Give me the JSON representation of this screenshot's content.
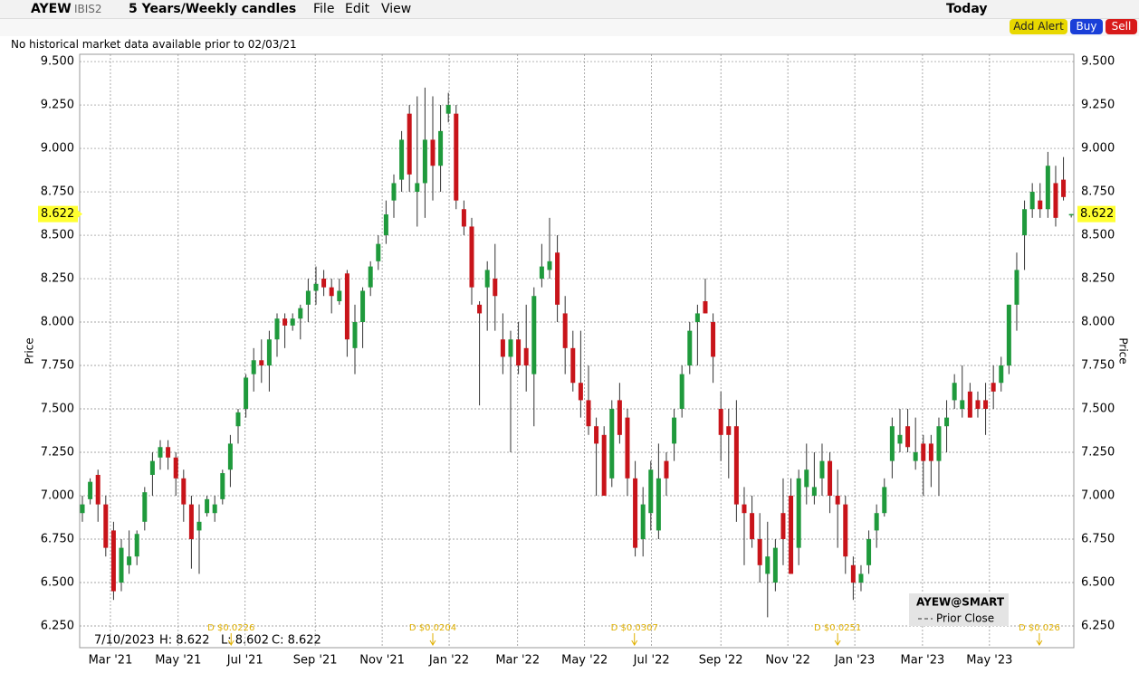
{
  "toolbar": {
    "symbol": "AYEW",
    "exchange": "IBIS2",
    "period": "5 Years/Weekly candles",
    "menus": [
      "File",
      "Edit",
      "View"
    ],
    "range": "Today",
    "buttons": [
      "Add Alert",
      "Buy",
      "Sell"
    ]
  },
  "notice": "No historical market data available prior to 02/03/21",
  "info": {
    "date": "7/10/2023",
    "items": [
      "H: 8.622",
      "L: 8.602",
      "C: 8.622"
    ]
  },
  "legend": {
    "title": "AYEW@SMART",
    "items": [
      "Prior Close"
    ]
  },
  "chart_data": {
    "type": "candlestick",
    "y_label": "Price",
    "up_color": "#1f9a3c",
    "down_color": "#c8141a",
    "grid": true,
    "last_price": 8.622,
    "ylim": [
      6.125,
      9.542
    ],
    "yticks": [
      {
        "value": 6.25,
        "label": "6.250"
      },
      {
        "value": 6.5,
        "label": "6.500"
      },
      {
        "value": 6.75,
        "label": "6.750"
      },
      {
        "value": 7,
        "label": "7.000"
      },
      {
        "value": 7.25,
        "label": "7.250"
      },
      {
        "value": 7.5,
        "label": "7.500"
      },
      {
        "value": 7.75,
        "label": "7.750"
      },
      {
        "value": 8,
        "label": "8.000"
      },
      {
        "value": 8.25,
        "label": "8.250"
      },
      {
        "value": 8.5,
        "label": "8.500"
      },
      {
        "value": 8.75,
        "label": "8.750"
      },
      {
        "value": 9,
        "label": "9.000"
      },
      {
        "value": 9.25,
        "label": "9.250"
      },
      {
        "value": 9.5,
        "label": "9.500"
      }
    ],
    "xlim": [
      -0.35,
      127.33
    ],
    "xticks": [
      {
        "value": 3.6,
        "label": "Mar '21"
      },
      {
        "value": 12.3,
        "label": "May '21"
      },
      {
        "value": 20.9,
        "label": "Jul '21"
      },
      {
        "value": 29.9,
        "label": "Sep '21"
      },
      {
        "value": 38.5,
        "label": "Nov '21"
      },
      {
        "value": 47.1,
        "label": "Jan '22"
      },
      {
        "value": 55.9,
        "label": "Mar '22"
      },
      {
        "value": 64.5,
        "label": "May '22"
      },
      {
        "value": 73.1,
        "label": "Jul '22"
      },
      {
        "value": 82,
        "label": "Sep '22"
      },
      {
        "value": 90.6,
        "label": "Nov '22"
      },
      {
        "value": 99.2,
        "label": "Jan '23"
      },
      {
        "value": 107.9,
        "label": "Mar '23"
      },
      {
        "value": 116.5,
        "label": "May '23"
      }
    ],
    "annotations": [
      {
        "x": 19.1,
        "text": "D $0.0226"
      },
      {
        "x": 45,
        "text": "D $0.0204"
      },
      {
        "x": 70.9,
        "text": "D $0.0307"
      },
      {
        "x": 97,
        "text": "D $0.0251"
      },
      {
        "x": 122.9,
        "text": "D $0.026"
      }
    ],
    "open": [
      6.9,
      6.98,
      7.12,
      6.95,
      6.8,
      6.5,
      6.6,
      6.65,
      6.85,
      7.12,
      7.22,
      7.28,
      7.22,
      7.1,
      6.95,
      6.8,
      6.9,
      6.9,
      6.98,
      7.15,
      7.4,
      7.5,
      7.7,
      7.78,
      7.75,
      7.9,
      8.02,
      7.98,
      8.02,
      8.1,
      8.18,
      8.25,
      8.2,
      8.12,
      8.28,
      7.85,
      8,
      8.2,
      8.35,
      8.5,
      8.7,
      8.82,
      9.2,
      8.75,
      8.8,
      9.05,
      8.9,
      9.2,
      9.2,
      8.65,
      8.55,
      8.1,
      8.2,
      8.25,
      7.9,
      7.8,
      7.9,
      7.85,
      7.7,
      8.25,
      8.3,
      8.4,
      8.05,
      7.85,
      7.65,
      7.55,
      7.4,
      7.35,
      7.1,
      7.55,
      7.45,
      7.1,
      6.75,
      6.9,
      6.8,
      7.2,
      7.3,
      7.5,
      7.75,
      8,
      8.12,
      8,
      7.5,
      7.4,
      7.4,
      6.95,
      6.9,
      6.75,
      6.55,
      6.5,
      6.9,
      7,
      6.7,
      7.05,
      7,
      7.1,
      7.2,
      7,
      6.95,
      6.6,
      6.5,
      6.6,
      6.8,
      6.9,
      7.2,
      7.3,
      7.4,
      7.2,
      7.3,
      7.3,
      7.2,
      7.4,
      7.55,
      7.5,
      7.6,
      7.55,
      7.55,
      7.65,
      7.65,
      7.75,
      8.1,
      8.5,
      8.65,
      8.7,
      8.65,
      8.8,
      8.82,
      8.622
    ],
    "high": [
      7,
      7.1,
      7.15,
      7,
      6.85,
      6.75,
      6.8,
      6.8,
      7.05,
      7.25,
      7.32,
      7.32,
      7.25,
      7.15,
      7,
      6.95,
      7,
      7,
      7.15,
      7.35,
      7.5,
      7.7,
      7.85,
      7.9,
      7.95,
      8.05,
      8.05,
      8.05,
      8.1,
      8.25,
      8.32,
      8.3,
      8.25,
      8.25,
      8.3,
      8.1,
      8.2,
      8.35,
      8.5,
      8.7,
      8.85,
      9.1,
      9.25,
      9.3,
      9.35,
      9.3,
      9.25,
      9.32,
      9.25,
      8.7,
      8.6,
      8.12,
      8.35,
      8.45,
      8.05,
      7.95,
      8,
      8.1,
      8.2,
      8.45,
      8.6,
      8.5,
      8.15,
      7.95,
      7.95,
      7.75,
      7.45,
      7.4,
      7.55,
      7.65,
      7.5,
      7.2,
      7.05,
      7.2,
      7.3,
      7.25,
      7.5,
      7.75,
      8,
      8.1,
      8.25,
      8.05,
      7.6,
      7.5,
      7.55,
      7.05,
      7,
      6.9,
      6.85,
      6.75,
      7.1,
      7.1,
      7.15,
      7.3,
      7.25,
      7.3,
      7.25,
      7.15,
      7,
      6.65,
      6.6,
      6.8,
      6.95,
      7.1,
      7.45,
      7.5,
      7.5,
      7.45,
      7.35,
      7.35,
      7.45,
      7.55,
      7.7,
      7.75,
      7.65,
      7.6,
      7.65,
      7.75,
      7.8,
      8.1,
      8.4,
      8.7,
      8.8,
      8.8,
      8.98,
      8.9,
      8.95,
      8.622
    ],
    "low": [
      6.85,
      6.95,
      6.85,
      6.65,
      6.4,
      6.45,
      6.55,
      6.6,
      6.8,
      7,
      7.15,
      7.15,
      7,
      6.85,
      6.58,
      6.55,
      6.88,
      6.85,
      6.95,
      7.05,
      7.3,
      7.45,
      7.6,
      7.65,
      7.6,
      7.8,
      7.85,
      7.95,
      7.9,
      8,
      8.1,
      8.15,
      8.05,
      8.1,
      7.8,
      7.7,
      7.85,
      8.15,
      8.3,
      8.45,
      8.6,
      8.75,
      8.75,
      8.55,
      8.6,
      8.7,
      8.75,
      9.15,
      8.65,
      8.5,
      8.1,
      7.52,
      7.95,
      7.95,
      7.7,
      7.25,
      7.7,
      7.6,
      7.4,
      8.2,
      8.25,
      8,
      7.7,
      7.6,
      7.45,
      7.35,
      7,
      7,
      7.05,
      7.3,
      7,
      6.65,
      6.65,
      6.8,
      6.75,
      7,
      7.2,
      7.45,
      7.7,
      7.75,
      8.05,
      7.65,
      7.2,
      7.1,
      6.85,
      6.6,
      6.7,
      6.5,
      6.3,
      6.45,
      6.6,
      6.55,
      6.6,
      6.95,
      6.95,
      7,
      6.9,
      6.7,
      6.55,
      6.4,
      6.45,
      6.55,
      6.7,
      6.88,
      7.1,
      7.25,
      7.25,
      7.15,
      7,
      7.05,
      7,
      7.25,
      7.5,
      7.45,
      7.45,
      7.45,
      7.35,
      7.5,
      7.6,
      7.7,
      7.95,
      8.3,
      8.6,
      8.6,
      8.6,
      8.55,
      8.7,
      8.602
    ],
    "close": [
      6.95,
      7.08,
      6.95,
      6.7,
      6.45,
      6.7,
      6.65,
      6.78,
      7.02,
      7.2,
      7.28,
      7.22,
      7.1,
      6.95,
      6.75,
      6.85,
      6.98,
      6.95,
      7.13,
      7.3,
      7.48,
      7.68,
      7.78,
      7.75,
      7.9,
      8.02,
      7.98,
      8.02,
      8.08,
      8.18,
      8.22,
      8.2,
      8.15,
      8.18,
      7.9,
      8,
      8.18,
      8.32,
      8.45,
      8.62,
      8.8,
      9.05,
      8.85,
      8.8,
      9.05,
      8.9,
      9.1,
      9.25,
      8.7,
      8.55,
      8.2,
      8.05,
      8.3,
      8.15,
      7.8,
      7.9,
      7.75,
      7.75,
      8.15,
      8.32,
      8.35,
      8.1,
      7.85,
      7.65,
      7.55,
      7.4,
      7.3,
      7,
      7.5,
      7.35,
      7.1,
      6.7,
      6.95,
      7.15,
      7.1,
      7.1,
      7.45,
      7.7,
      7.95,
      8.05,
      8.05,
      7.8,
      7.35,
      7.35,
      6.95,
      6.9,
      6.75,
      6.6,
      6.65,
      6.7,
      6.75,
      6.55,
      7.1,
      7.15,
      7.05,
      7.2,
      7,
      6.95,
      6.65,
      6.5,
      6.55,
      6.75,
      6.9,
      7.05,
      7.4,
      7.35,
      7.28,
      7.25,
      7.2,
      7.2,
      7.4,
      7.45,
      7.65,
      7.55,
      7.45,
      7.5,
      7.5,
      7.6,
      7.75,
      8.1,
      8.3,
      8.65,
      8.75,
      8.65,
      8.9,
      8.6,
      8.72,
      8.622
    ]
  }
}
